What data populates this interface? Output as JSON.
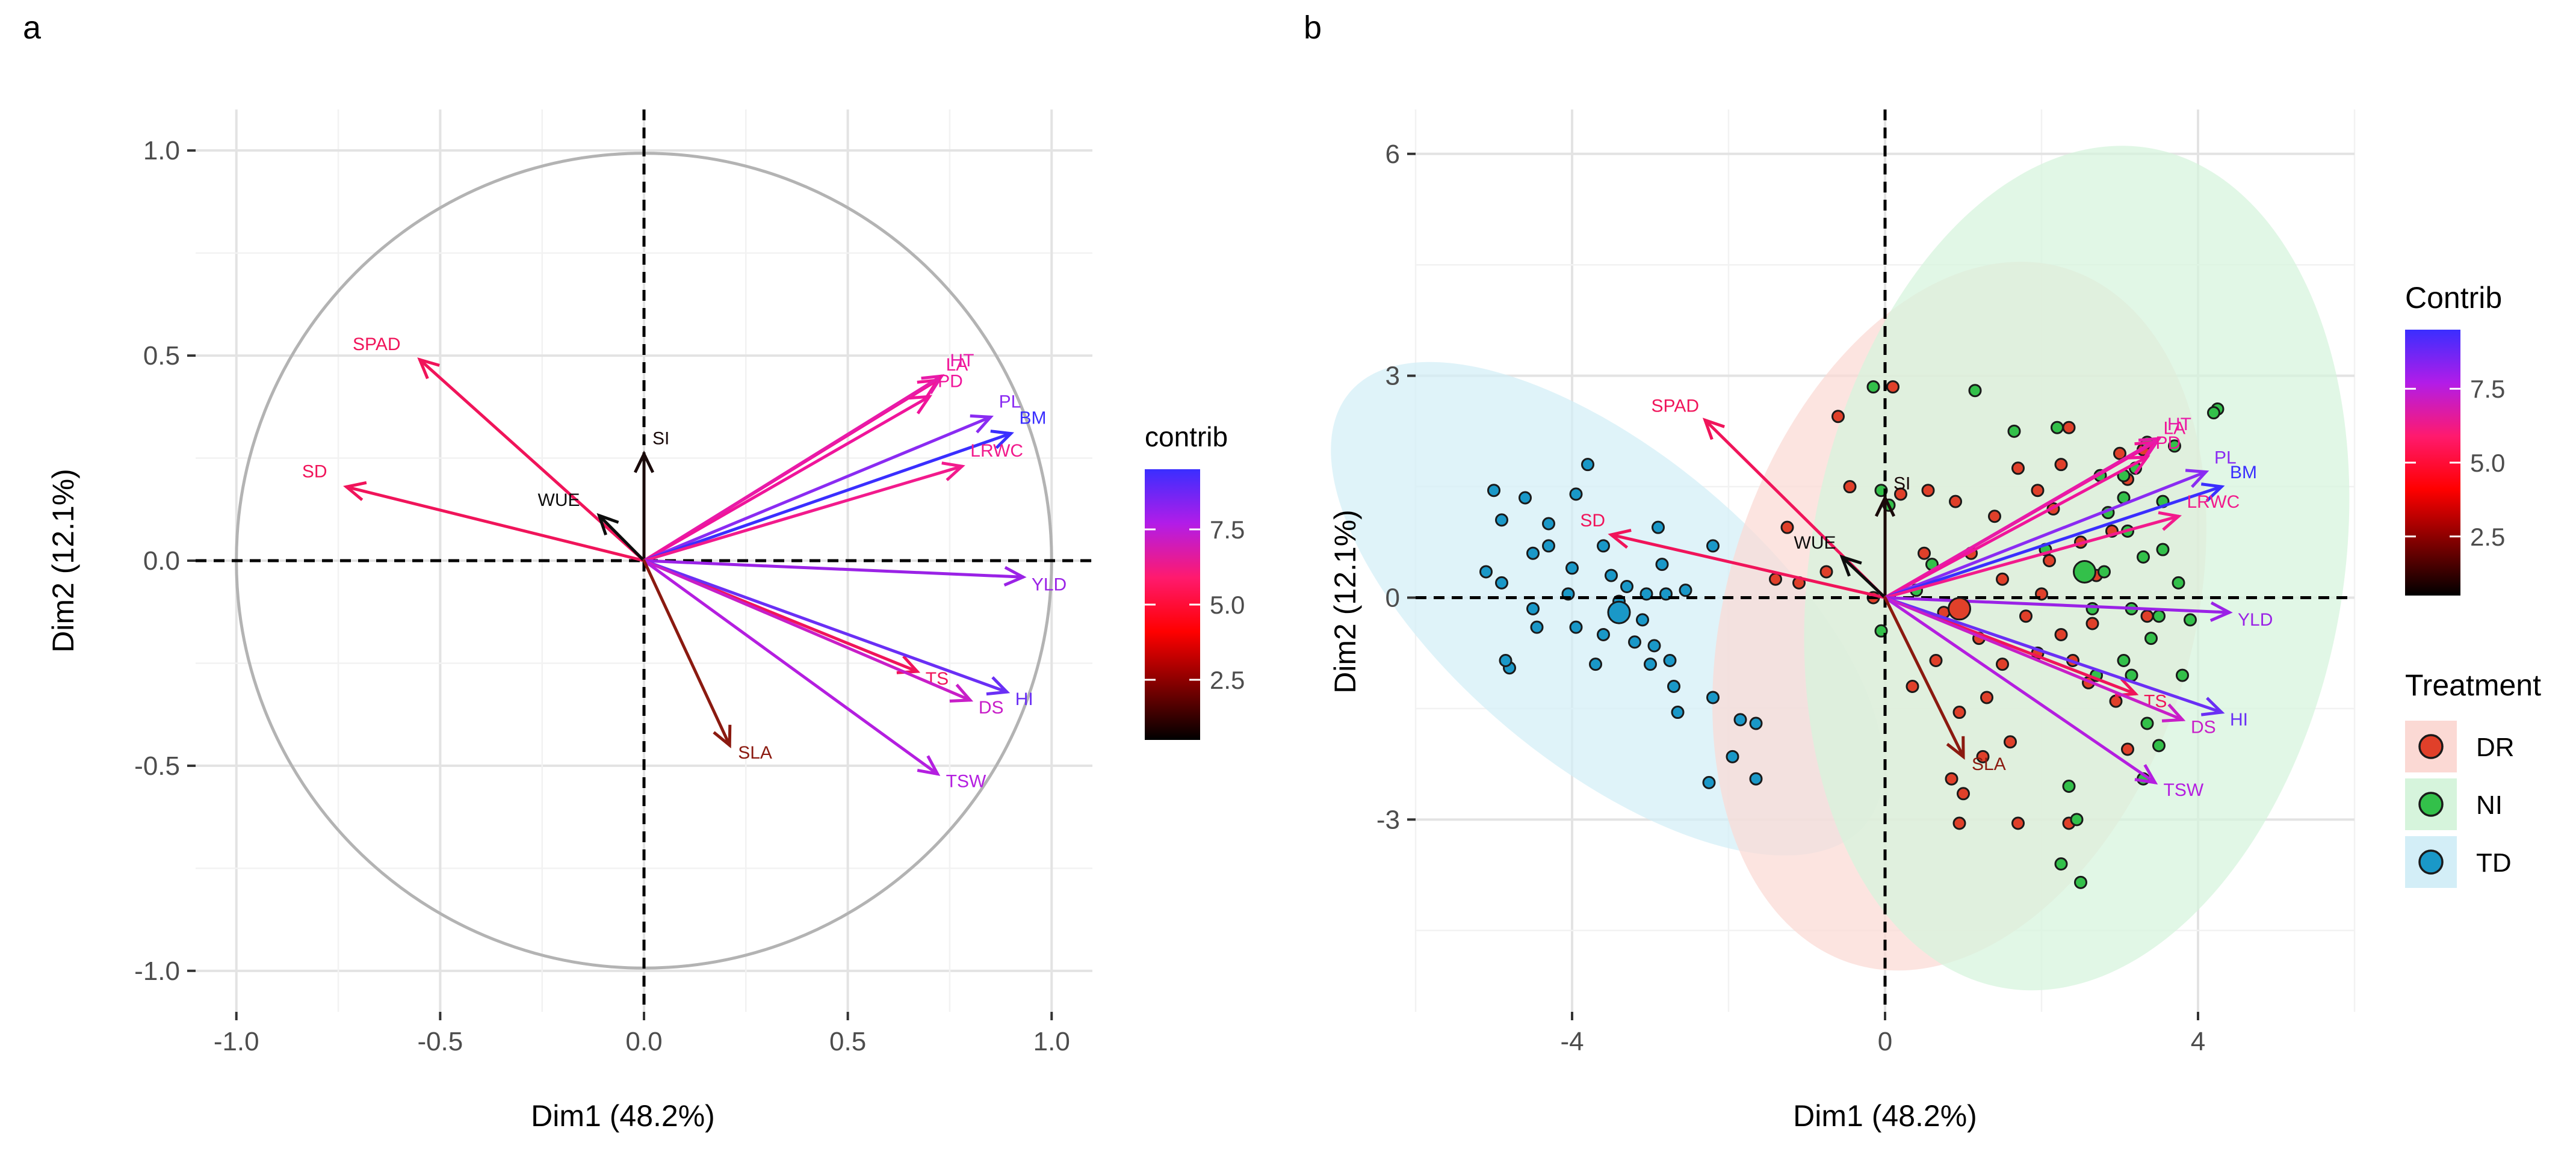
{
  "chart_data": [
    {
      "panel_label": "a",
      "type": "pca_variable_biplot",
      "xlabel": "Dim1 (48.2%)",
      "ylabel": "Dim2 (12.1%)",
      "xlim": [
        -1.1,
        1.1
      ],
      "ylim": [
        -1.1,
        1.1
      ],
      "xticks": [
        -1.0,
        -0.5,
        0.0,
        0.5,
        1.0
      ],
      "xtick_labels": [
        "-1.0",
        "-0.5",
        "0.0",
        "0.5",
        "1.0"
      ],
      "yticks": [
        -1.0,
        -0.5,
        0.0,
        0.5,
        1.0
      ],
      "yticks_labels": [
        "-1.0",
        "-0.5",
        "0.0",
        "0.5",
        "1.0"
      ],
      "grid": true,
      "legend": {
        "title": "contrib",
        "position": "right",
        "range": [
          0.5,
          9.5
        ],
        "ticks": [
          2.5,
          5.0,
          7.5
        ],
        "tick_labels": [
          "2.5",
          "5.0",
          "7.5"
        ],
        "colors": [
          "#000000",
          "#ff0000",
          "#ff0080",
          "#a020f0",
          "#3a2eff"
        ]
      },
      "variables": [
        {
          "name": "SPAD",
          "x": -0.55,
          "y": 0.49,
          "contrib": 5.6,
          "color": "#f0145a"
        },
        {
          "name": "SD",
          "x": -0.73,
          "y": 0.18,
          "contrib": 5.9,
          "color": "#f0145a"
        },
        {
          "name": "SI",
          "x": 0.0,
          "y": 0.26,
          "contrib": 0.6,
          "color": "#1a0a0a"
        },
        {
          "name": "WUE",
          "x": -0.11,
          "y": 0.11,
          "contrib": 0.3,
          "color": "#0d0d0d"
        },
        {
          "name": "LA",
          "x": 0.72,
          "y": 0.44,
          "contrib": 6.6,
          "color": "#f21496"
        },
        {
          "name": "HT",
          "x": 0.73,
          "y": 0.45,
          "contrib": 7.0,
          "color": "#e81aa8"
        },
        {
          "name": "PD",
          "x": 0.7,
          "y": 0.4,
          "contrib": 6.5,
          "color": "#f0149a"
        },
        {
          "name": "PL",
          "x": 0.85,
          "y": 0.35,
          "contrib": 8.4,
          "color": "#8a2bf2"
        },
        {
          "name": "BM",
          "x": 0.9,
          "y": 0.31,
          "contrib": 9.1,
          "color": "#3a2eff"
        },
        {
          "name": "LRWC",
          "x": 0.78,
          "y": 0.23,
          "contrib": 6.5,
          "color": "#f21a8c"
        },
        {
          "name": "YLD",
          "x": 0.93,
          "y": -0.04,
          "contrib": 8.8,
          "color": "#9a22e6"
        },
        {
          "name": "TS",
          "x": 0.67,
          "y": -0.27,
          "contrib": 5.5,
          "color": "#f0145a"
        },
        {
          "name": "HI",
          "x": 0.89,
          "y": -0.32,
          "contrib": 9.0,
          "color": "#6a2ff5"
        },
        {
          "name": "DS",
          "x": 0.8,
          "y": -0.34,
          "contrib": 7.5,
          "color": "#c81ec8"
        },
        {
          "name": "TSW",
          "x": 0.72,
          "y": -0.52,
          "contrib": 7.8,
          "color": "#b41ee0"
        },
        {
          "name": "SLA",
          "x": 0.21,
          "y": -0.45,
          "contrib": 2.4,
          "color": "#8b1a10"
        }
      ]
    },
    {
      "panel_label": "b",
      "type": "pca_biplot",
      "xlabel": "Dim1 (48.2%)",
      "ylabel": "Dim2 (12.1%)",
      "xlim": [
        -6,
        6
      ],
      "ylim": [
        -5.6,
        6.6
      ],
      "xticks": [
        -4,
        0,
        4
      ],
      "xtick_labels": [
        "-4",
        "0",
        "4"
      ],
      "yticks": [
        -3,
        0,
        3,
        6
      ],
      "ytick_labels": [
        "-3",
        "0",
        "3",
        "6"
      ],
      "grid": true,
      "legend_contrib": {
        "title": "Contrib",
        "position": "right",
        "range": [
          0.5,
          9.5
        ],
        "ticks": [
          2.5,
          5.0,
          7.5
        ],
        "tick_labels": [
          "2.5",
          "5.0",
          "7.5"
        ],
        "colors": [
          "#000000",
          "#ff0000",
          "#ff0080",
          "#a020f0",
          "#3a2eff"
        ]
      },
      "legend_treatment": {
        "title": "Treatment",
        "position": "right",
        "entries": [
          {
            "label": "DR",
            "color": "#e0402a",
            "fill": "#fbd9d4"
          },
          {
            "label": "NI",
            "color": "#33c04a",
            "fill": "#d6f4dc"
          },
          {
            "label": "TD",
            "color": "#1a98c8",
            "fill": "#d3eef7"
          }
        ]
      },
      "variables": [
        {
          "name": "SPAD",
          "x": -2.3,
          "y": 2.4,
          "contrib": 5.6,
          "color": "#f0145a"
        },
        {
          "name": "SD",
          "x": -3.5,
          "y": 0.85,
          "contrib": 5.9,
          "color": "#f0145a"
        },
        {
          "name": "SI",
          "x": 0.0,
          "y": 1.35,
          "contrib": 0.6,
          "color": "#1a0a0a"
        },
        {
          "name": "WUE",
          "x": -0.55,
          "y": 0.55,
          "contrib": 0.3,
          "color": "#0d0d0d"
        },
        {
          "name": "LA",
          "x": 3.45,
          "y": 2.1,
          "contrib": 6.6,
          "color": "#f21496"
        },
        {
          "name": "HT",
          "x": 3.5,
          "y": 2.15,
          "contrib": 7.0,
          "color": "#e81aa8"
        },
        {
          "name": "PD",
          "x": 3.35,
          "y": 1.9,
          "contrib": 6.5,
          "color": "#f0149a"
        },
        {
          "name": "PL",
          "x": 4.1,
          "y": 1.7,
          "contrib": 8.4,
          "color": "#8a2bf2"
        },
        {
          "name": "BM",
          "x": 4.3,
          "y": 1.5,
          "contrib": 9.1,
          "color": "#3a2eff"
        },
        {
          "name": "LRWC",
          "x": 3.75,
          "y": 1.1,
          "contrib": 6.5,
          "color": "#f21a8c"
        },
        {
          "name": "YLD",
          "x": 4.4,
          "y": -0.2,
          "contrib": 8.8,
          "color": "#9a22e6"
        },
        {
          "name": "TS",
          "x": 3.2,
          "y": -1.3,
          "contrib": 5.5,
          "color": "#f0145a"
        },
        {
          "name": "HI",
          "x": 4.3,
          "y": -1.55,
          "contrib": 9.0,
          "color": "#6a2ff5"
        },
        {
          "name": "DS",
          "x": 3.8,
          "y": -1.65,
          "contrib": 7.5,
          "color": "#c81ec8"
        },
        {
          "name": "TSW",
          "x": 3.45,
          "y": -2.5,
          "contrib": 7.8,
          "color": "#b41ee0"
        },
        {
          "name": "SLA",
          "x": 1.0,
          "y": -2.15,
          "contrib": 2.4,
          "color": "#8b1a10"
        }
      ],
      "ellipses": [
        {
          "group": "TD",
          "cx": -3.55,
          "cy": -0.15,
          "rx": 4.3,
          "ry": 2.1,
          "angle_deg": -40
        },
        {
          "group": "DR",
          "cx": 0.95,
          "cy": -0.25,
          "rx": 4.65,
          "ry": 3.15,
          "angle_deg": 73
        },
        {
          "group": "NI",
          "cx": 2.45,
          "cy": 0.4,
          "rx": 5.45,
          "ry": 3.6,
          "angle_deg": 80
        }
      ],
      "centroids": [
        {
          "group": "TD",
          "x": -3.4,
          "y": -0.2
        },
        {
          "group": "DR",
          "x": 0.95,
          "y": -0.15
        },
        {
          "group": "NI",
          "x": 2.55,
          "y": 0.35
        }
      ],
      "points": {
        "TD": [
          [
            -5.0,
            1.45
          ],
          [
            -5.1,
            0.35
          ],
          [
            -4.9,
            0.2
          ],
          [
            -4.6,
            1.35
          ],
          [
            -4.5,
            -0.15
          ],
          [
            -4.45,
            -0.4
          ],
          [
            -4.3,
            1.0
          ],
          [
            -4.05,
            0.05
          ],
          [
            -4.0,
            0.4
          ],
          [
            -3.95,
            -0.4
          ],
          [
            -3.7,
            -0.9
          ],
          [
            -3.95,
            1.4
          ],
          [
            -3.8,
            1.8
          ],
          [
            -4.3,
            0.7
          ],
          [
            -4.9,
            1.05
          ],
          [
            -4.5,
            0.6
          ],
          [
            -3.6,
            0.7
          ],
          [
            -3.5,
            0.3
          ],
          [
            -3.4,
            -0.05
          ],
          [
            -3.3,
            0.15
          ],
          [
            -3.2,
            -0.6
          ],
          [
            -3.1,
            -0.3
          ],
          [
            -3.05,
            0.05
          ],
          [
            -2.95,
            -0.65
          ],
          [
            -2.75,
            -0.85
          ],
          [
            -2.7,
            -1.2
          ],
          [
            -2.65,
            -1.55
          ],
          [
            -2.9,
            0.95
          ],
          [
            -2.85,
            0.45
          ],
          [
            -3.6,
            -0.5
          ],
          [
            -3.0,
            -0.9
          ],
          [
            -2.2,
            -1.35
          ],
          [
            -1.85,
            -1.65
          ],
          [
            -1.65,
            -1.7
          ],
          [
            -1.95,
            -2.15
          ],
          [
            -2.25,
            -2.5
          ],
          [
            -1.65,
            -2.45
          ],
          [
            -2.2,
            0.7
          ],
          [
            -4.8,
            -0.95
          ],
          [
            -4.85,
            -0.85
          ],
          [
            -2.8,
            0.05
          ],
          [
            -2.55,
            0.1
          ]
        ],
        "DR": [
          [
            -0.45,
            1.5
          ],
          [
            -0.6,
            2.45
          ],
          [
            0.1,
            2.85
          ],
          [
            -0.75,
            0.35
          ],
          [
            -1.25,
            0.95
          ],
          [
            -1.4,
            0.25
          ],
          [
            -1.1,
            0.2
          ],
          [
            -0.15,
            0.0
          ],
          [
            0.2,
            1.4
          ],
          [
            0.55,
            1.45
          ],
          [
            0.9,
            1.3
          ],
          [
            1.4,
            1.1
          ],
          [
            1.7,
            1.75
          ],
          [
            1.95,
            1.45
          ],
          [
            2.15,
            1.2
          ],
          [
            2.25,
            1.8
          ],
          [
            2.35,
            2.3
          ],
          [
            2.5,
            0.75
          ],
          [
            2.7,
            0.3
          ],
          [
            2.9,
            0.9
          ],
          [
            2.1,
            0.5
          ],
          [
            1.5,
            0.25
          ],
          [
            1.8,
            -0.25
          ],
          [
            2.25,
            -0.5
          ],
          [
            1.95,
            -0.75
          ],
          [
            1.5,
            -0.9
          ],
          [
            0.75,
            -0.2
          ],
          [
            0.65,
            -0.85
          ],
          [
            0.35,
            -1.2
          ],
          [
            0.95,
            -1.55
          ],
          [
            1.3,
            -1.35
          ],
          [
            1.6,
            -1.95
          ],
          [
            2.6,
            -1.15
          ],
          [
            2.95,
            -1.4
          ],
          [
            3.1,
            -2.05
          ],
          [
            0.85,
            -2.45
          ],
          [
            1.0,
            -2.65
          ],
          [
            0.95,
            -3.05
          ],
          [
            1.7,
            -3.05
          ],
          [
            2.35,
            -3.05
          ],
          [
            1.25,
            -2.15
          ],
          [
            3.0,
            1.95
          ],
          [
            3.3,
            2.0
          ],
          [
            3.35,
            -0.25
          ],
          [
            2.0,
            0.05
          ],
          [
            1.1,
            0.6
          ],
          [
            0.5,
            0.6
          ],
          [
            3.1,
            1.6
          ],
          [
            2.65,
            -0.35
          ],
          [
            2.4,
            -0.85
          ],
          [
            1.2,
            -0.55
          ]
        ],
        "NI": [
          [
            -0.15,
            2.85
          ],
          [
            1.15,
            2.8
          ],
          [
            1.65,
            2.25
          ],
          [
            2.2,
            2.3
          ],
          [
            2.75,
            1.65
          ],
          [
            3.05,
            1.35
          ],
          [
            3.2,
            1.75
          ],
          [
            3.7,
            2.05
          ],
          [
            4.25,
            2.55
          ],
          [
            4.2,
            2.5
          ],
          [
            3.35,
            2.1
          ],
          [
            2.85,
            1.15
          ],
          [
            3.55,
            1.3
          ],
          [
            3.1,
            0.9
          ],
          [
            3.3,
            0.55
          ],
          [
            3.55,
            0.65
          ],
          [
            2.05,
            0.65
          ],
          [
            3.75,
            0.2
          ],
          [
            3.9,
            -0.3
          ],
          [
            3.5,
            -0.25
          ],
          [
            3.15,
            -0.15
          ],
          [
            2.65,
            -0.15
          ],
          [
            3.4,
            -0.55
          ],
          [
            3.05,
            -0.85
          ],
          [
            3.15,
            -1.05
          ],
          [
            2.7,
            -1.05
          ],
          [
            3.8,
            -1.05
          ],
          [
            3.35,
            -1.7
          ],
          [
            3.5,
            -2.0
          ],
          [
            3.3,
            -2.45
          ],
          [
            2.35,
            -2.55
          ],
          [
            2.45,
            -3.0
          ],
          [
            2.25,
            -3.6
          ],
          [
            2.5,
            -3.85
          ],
          [
            -0.05,
            1.45
          ],
          [
            0.05,
            1.25
          ],
          [
            0.4,
            0.1
          ],
          [
            0.6,
            0.45
          ],
          [
            -0.05,
            -0.45
          ],
          [
            2.8,
            0.35
          ],
          [
            3.05,
            1.65
          ]
        ]
      }
    }
  ]
}
